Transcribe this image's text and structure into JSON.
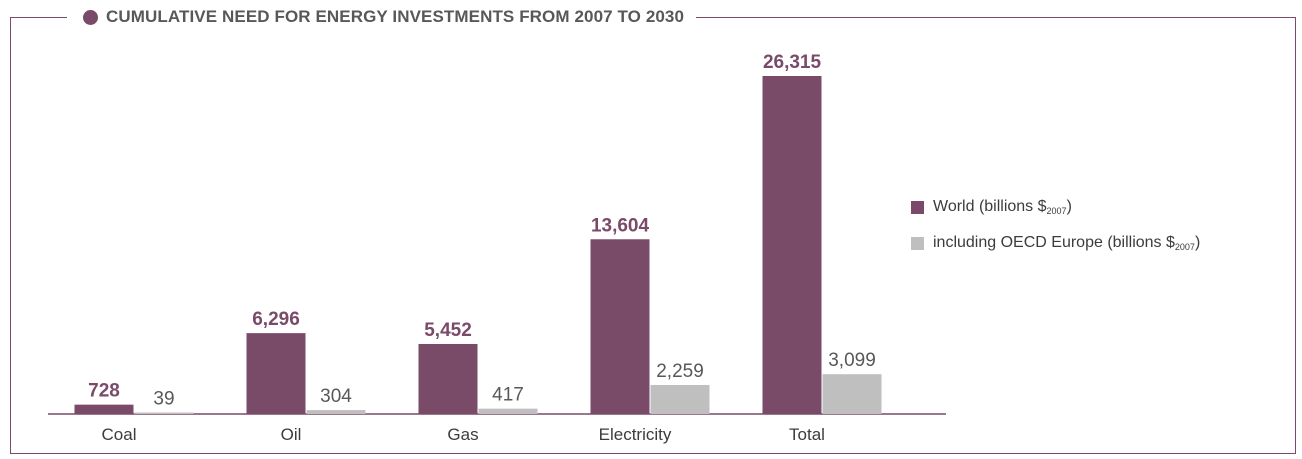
{
  "title": "CUMULATIVE NEED FOR ENERGY INVESTMENTS FROM 2007 TO 2030",
  "colors": {
    "world": "#7a4a69",
    "oecd": "#bfbfbf",
    "frame": "#7a4a69",
    "text": "#3c3c3c"
  },
  "legend": [
    {
      "text": "World (billions $",
      "sub": "2007",
      "close": ")"
    },
    {
      "text": "including OECD Europe (billions $",
      "sub": "2007",
      "close": ")"
    }
  ],
  "chart_data": {
    "type": "bar",
    "title": "CUMULATIVE NEED FOR ENERGY INVESTMENTS FROM 2007 TO 2030",
    "categories": [
      "Coal",
      "Oil",
      "Gas",
      "Electricity",
      "Total"
    ],
    "series": [
      {
        "name": "World (billions $2007)",
        "values": [
          728,
          6296,
          5452,
          13604,
          26315
        ],
        "labels": [
          "728",
          "6,296",
          "5,452",
          "13,604",
          "26,315"
        ]
      },
      {
        "name": "including OECD Europe (billions $2007)",
        "values": [
          39,
          304,
          417,
          2259,
          3099
        ],
        "labels": [
          "39",
          "304",
          "417",
          "2,259",
          "3,099"
        ]
      }
    ],
    "ylim": [
      0,
      26315
    ],
    "grid": false,
    "legend_position": "right"
  }
}
